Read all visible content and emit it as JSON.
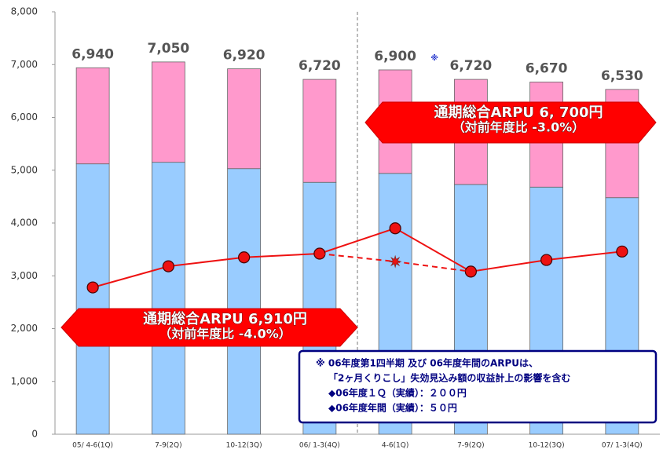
{
  "chart_data": {
    "type": "stacked_bar_line",
    "categories": [
      "05/ 4-6(1Q)",
      "7-9(2Q)",
      "10-12(3Q)",
      "06/ 1-3(4Q)",
      "4-6(1Q)",
      "7-9(2Q)",
      "10-12(3Q)",
      "07/ 1-3(4Q)"
    ],
    "series": [
      {
        "color": "#99ccff",
        "values": [
          5120,
          5150,
          5030,
          4770,
          4940,
          4730,
          4680,
          4480
        ]
      },
      {
        "color": "#ff99cc",
        "values": [
          1820,
          1900,
          1890,
          1950,
          1960,
          1990,
          1990,
          2050
        ]
      },
      {
        "color": "#ee1111",
        "kind": "line",
        "values": [
          2780,
          3180,
          3350,
          3420,
          3900,
          3080,
          3300,
          3460
        ]
      },
      {
        "color": "#ee1111",
        "kind": "line",
        "dashed": true,
        "values": [
          null,
          null,
          null,
          3420,
          3270,
          3080,
          null,
          null
        ]
      }
    ],
    "total_labels": [
      "6,940",
      "7,050",
      "6,920",
      "6,720",
      "6,900",
      "6,720",
      "6,670",
      "6,530"
    ],
    "total_note": {
      "index": 4,
      "text": "※"
    },
    "ylim": [
      0,
      8000
    ],
    "yticks": [
      0,
      {
        "value": 1000,
        "label": "1,000"
      },
      {
        "value": 2000,
        "label": "2,000"
      },
      {
        "value": 3000,
        "label": "3,000"
      },
      {
        "value": 4000,
        "label": "4,000"
      },
      {
        "value": 5000,
        "label": "5,000"
      },
      {
        "value": 6000,
        "label": "6,000"
      },
      {
        "value": 7000,
        "label": "7,000"
      },
      {
        "value": 8000,
        "label": "8,000"
      }
    ],
    "callouts": [
      {
        "lines": [
          "通期総合ARPU 6, 700円",
          "（対前年度比 -3.0%）"
        ]
      },
      {
        "lines": [
          "通期総合ARPU 6,910円",
          "（対前年度比 -4.0%）"
        ]
      }
    ],
    "note_lines": [
      "※ 06年度第1四半期 及び 06年度年間のARPUは、",
      "「2ヶ月くりこし」失効見込み額の収益計上の影響を含む",
      "◆06年度１Ｑ（実績）：２００円",
      "◆06年度年間（実績）：５０円"
    ]
  }
}
